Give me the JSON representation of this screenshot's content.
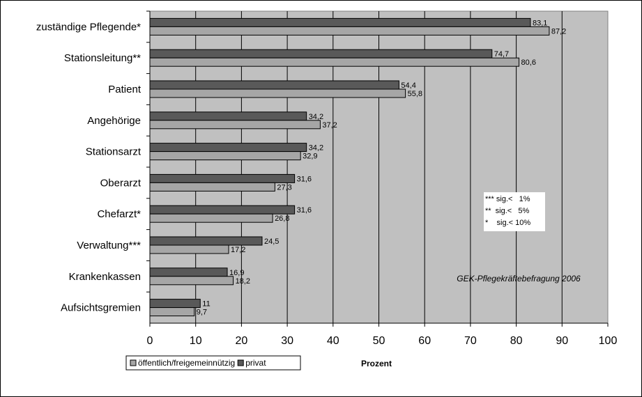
{
  "chart_data": {
    "type": "bar",
    "orientation": "horizontal",
    "categories": [
      "zuständige Pflegende*",
      "Stationsleitung**",
      "Patient",
      "Angehörige",
      "Stationsarzt",
      "Oberarzt",
      "Chefarzt*",
      "Verwaltung***",
      "Krankenkassen",
      "Aufsichtsgremien"
    ],
    "series": [
      {
        "name": "privat",
        "color": "#595959",
        "values": [
          83.1,
          74.7,
          54.4,
          34.2,
          34.2,
          31.6,
          31.6,
          24.5,
          16.9,
          11
        ]
      },
      {
        "name": "öffentlich/freigemeinnützig",
        "color": "#a6a6a6",
        "values": [
          87.2,
          80.6,
          55.8,
          37.2,
          32.9,
          27.3,
          26.8,
          17.2,
          18.2,
          9.7
        ]
      }
    ],
    "data_labels": {
      "privat": [
        "83,1",
        "74,7",
        "54,4",
        "34,2",
        "34,2",
        "31,6",
        "31,6",
        "24,5",
        "16,9",
        "11"
      ],
      "öffentlich/freigemeinnützig": [
        "87,2",
        "80,6",
        "55,8",
        "37,2",
        "32,9",
        "27,3",
        "26,8",
        "17,2",
        "18,2",
        "9,7"
      ]
    },
    "xlabel": "Prozent",
    "xlim": [
      0,
      100
    ],
    "xticks": [
      "0",
      "10",
      "20",
      "30",
      "40",
      "50",
      "60",
      "70",
      "80",
      "90",
      "100"
    ],
    "grid": "vertical",
    "plot_background": "#c0c0c0",
    "legend": {
      "placement": "bottom-left",
      "entries": [
        "öffentlich/freigemeinnützig",
        "privat"
      ]
    },
    "annotations": {
      "significance": [
        "*** sig.<   1%",
        "**  sig.<   5%",
        "*    sig.< 10%"
      ],
      "source": "GEK-Pflegekräftebefragung 2006"
    }
  }
}
